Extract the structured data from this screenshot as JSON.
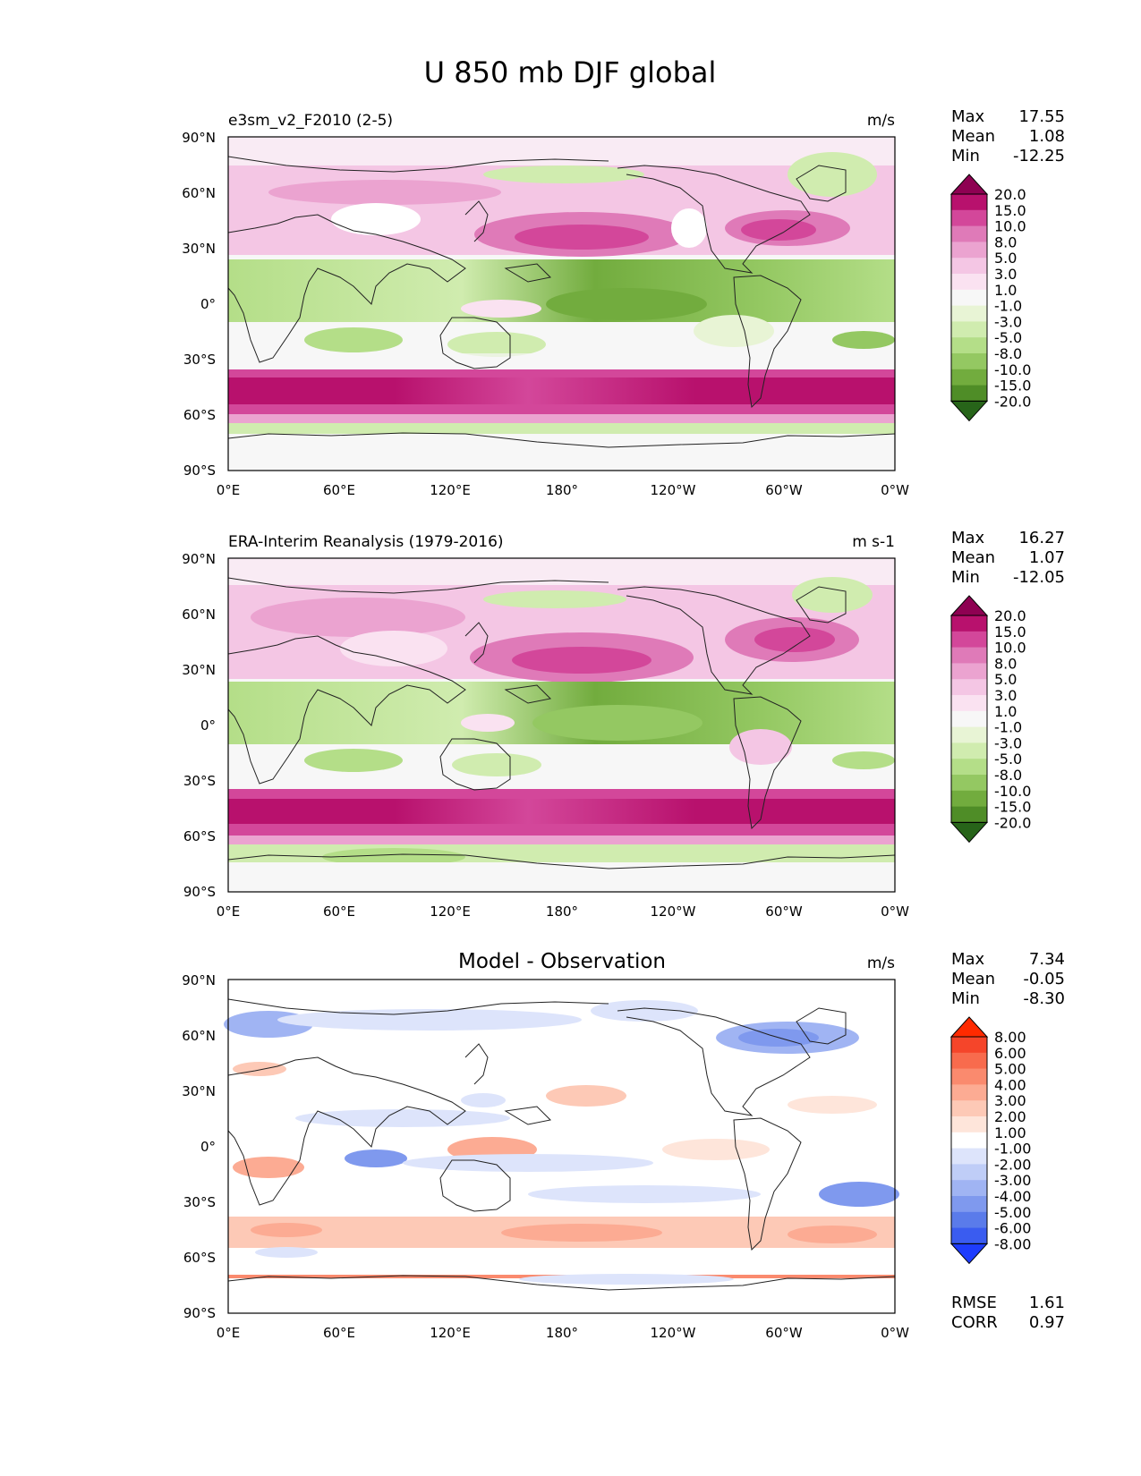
{
  "title": "U 850 mb DJF global",
  "x_ticks": [
    "0°E",
    "60°E",
    "120°E",
    "180°",
    "120°W",
    "60°W",
    "0°W"
  ],
  "y_ticks": [
    "90°N",
    "60°N",
    "30°N",
    "0°",
    "30°S",
    "60°S",
    "90°S"
  ],
  "panels": [
    {
      "title_left": "e3sm_v2_F2010 (2-5)",
      "title_center": "",
      "units": "m/s",
      "stats": [
        {
          "label": "Max",
          "value": "17.55"
        },
        {
          "label": "Mean",
          "value": "1.08"
        },
        {
          "label": "Min",
          "value": "-12.25"
        }
      ],
      "extra_stats": [],
      "colorbar": {
        "labels": [
          "20.0",
          "15.0",
          "10.0",
          "8.0",
          "5.0",
          "3.0",
          "1.0",
          "-1.0",
          "-3.0",
          "-5.0",
          "-8.0",
          "-10.0",
          "-15.0",
          "-20.0"
        ],
        "colors": [
          "#8e0152",
          "#b8116d",
          "#d3479a",
          "#df7ab8",
          "#eba3d0",
          "#f4c6e4",
          "#fae2f1",
          "#f7f7f7",
          "#e8f4d5",
          "#d0ecaf",
          "#b4de88",
          "#94c862",
          "#72ac3e",
          "#4f8d27",
          "#276419"
        ]
      }
    },
    {
      "title_left": "ERA-Interim Reanalysis (1979-2016)",
      "title_center": "",
      "units": "m s-1",
      "stats": [
        {
          "label": "Max",
          "value": "16.27"
        },
        {
          "label": "Mean",
          "value": "1.07"
        },
        {
          "label": "Min",
          "value": "-12.05"
        }
      ],
      "extra_stats": [],
      "colorbar": {
        "labels": [
          "20.0",
          "15.0",
          "10.0",
          "8.0",
          "5.0",
          "3.0",
          "1.0",
          "-1.0",
          "-3.0",
          "-5.0",
          "-8.0",
          "-10.0",
          "-15.0",
          "-20.0"
        ],
        "colors": [
          "#8e0152",
          "#b8116d",
          "#d3479a",
          "#df7ab8",
          "#eba3d0",
          "#f4c6e4",
          "#fae2f1",
          "#f7f7f7",
          "#e8f4d5",
          "#d0ecaf",
          "#b4de88",
          "#94c862",
          "#72ac3e",
          "#4f8d27",
          "#276419"
        ]
      }
    },
    {
      "title_left": "",
      "title_center": "Model - Observation",
      "units": "m/s",
      "stats": [
        {
          "label": "Max",
          "value": "7.34"
        },
        {
          "label": "Mean",
          "value": "-0.05"
        },
        {
          "label": "Min",
          "value": "-8.30"
        }
      ],
      "extra_stats": [
        {
          "label": "RMSE",
          "value": "1.61"
        },
        {
          "label": "CORR",
          "value": "0.97"
        }
      ],
      "colorbar": {
        "labels": [
          "8.00",
          "6.00",
          "5.00",
          "4.00",
          "3.00",
          "2.00",
          "1.00",
          "-1.00",
          "-2.00",
          "-3.00",
          "-4.00",
          "-5.00",
          "-6.00",
          "-8.00"
        ],
        "colors": [
          "#ff2a00",
          "#f5452a",
          "#f86b4d",
          "#fa8a6e",
          "#fcab93",
          "#fdc9b6",
          "#fee5da",
          "#ffffff",
          "#dde4fb",
          "#bfcdf7",
          "#a0b4f3",
          "#7f99ee",
          "#5a7bea",
          "#3a5cf0",
          "#1e3cfd"
        ]
      }
    }
  ]
}
